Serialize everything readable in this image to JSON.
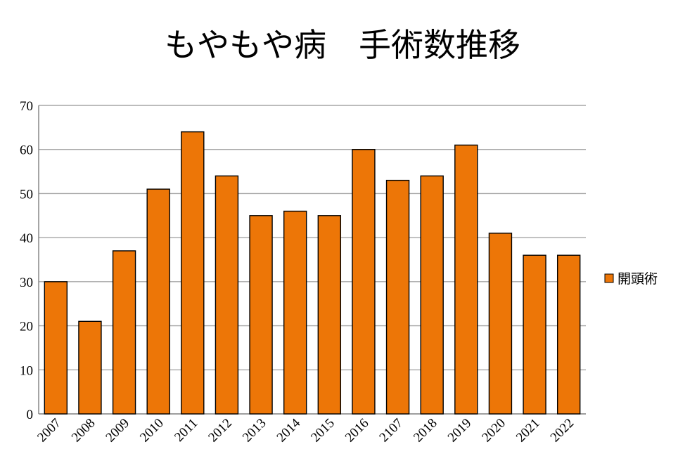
{
  "chart_data": {
    "type": "bar",
    "title": "もやもや病　手術数推移",
    "categories": [
      "2007",
      "2008",
      "2009",
      "2010",
      "2011",
      "2012",
      "2013",
      "2014",
      "2015",
      "2016",
      "2107",
      "2018",
      "2019",
      "2020",
      "2021",
      "2022"
    ],
    "series": [
      {
        "name": "開頭術",
        "values": [
          30,
          21,
          37,
          51,
          64,
          54,
          45,
          46,
          45,
          60,
          53,
          54,
          61,
          41,
          36,
          36
        ]
      }
    ],
    "ylim": [
      0,
      70
    ],
    "yticks": [
      0,
      10,
      20,
      30,
      40,
      50,
      60,
      70
    ],
    "grid": true,
    "legend_position": "right",
    "bar_color": "#ed7607"
  }
}
